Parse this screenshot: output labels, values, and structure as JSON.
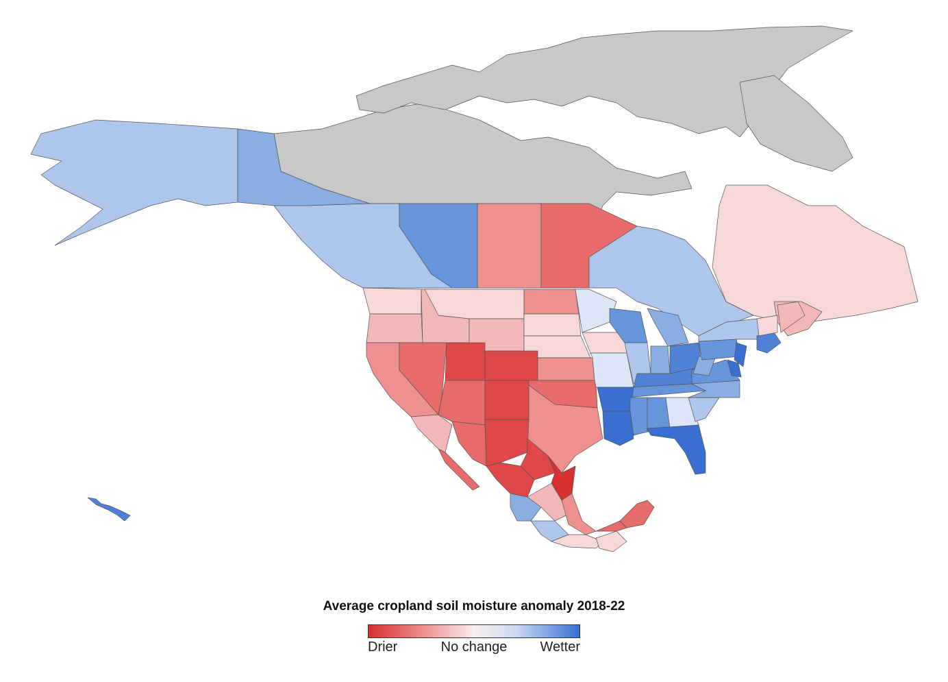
{
  "legend": {
    "title": "Average cropland soil moisture anomaly 2018-22",
    "low_label": "Drier",
    "mid_label": "No change",
    "high_label": "Wetter",
    "colors": {
      "drier": "#d73030",
      "neutral": "#f9eeee",
      "wetter": "#3a6fd2",
      "no_data": "#c8c8c8"
    }
  }
}
